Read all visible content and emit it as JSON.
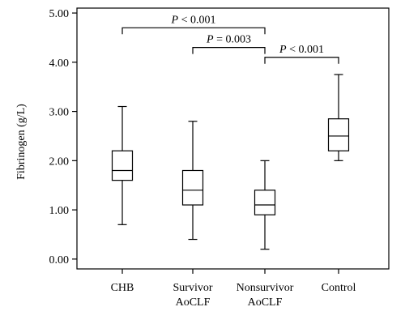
{
  "chart_data": {
    "type": "box",
    "ylabel": "Fibrinogen (g/L)",
    "xlabel": "",
    "ylim": [
      -0.2,
      5.1
    ],
    "yticks": [
      "0.00",
      "1.00",
      "2.00",
      "3.00",
      "4.00",
      "5.00"
    ],
    "ytick_values": [
      0,
      1,
      2,
      3,
      4,
      5
    ],
    "grid": false,
    "legend": "none",
    "categories": [
      {
        "lines": [
          "CHB"
        ]
      },
      {
        "lines": [
          "Survivor",
          "AoCLF"
        ]
      },
      {
        "lines": [
          "Nonsurvivor",
          "AoCLF"
        ]
      },
      {
        "lines": [
          "Control"
        ]
      }
    ],
    "boxes": [
      {
        "whisker_low": 0.7,
        "q1": 1.6,
        "median": 1.8,
        "q3": 2.2,
        "whisker_high": 3.1
      },
      {
        "whisker_low": 0.4,
        "q1": 1.1,
        "median": 1.4,
        "q3": 1.8,
        "whisker_high": 2.8
      },
      {
        "whisker_low": 0.2,
        "q1": 0.9,
        "median": 1.1,
        "q3": 1.4,
        "whisker_high": 2.0
      },
      {
        "whisker_low": 2.0,
        "q1": 2.2,
        "median": 2.5,
        "q3": 2.85,
        "whisker_high": 3.75
      }
    ],
    "significance": [
      {
        "from": 0,
        "to": 2,
        "level": 4.7,
        "label_italic": "P",
        "label_rest": " < 0.001"
      },
      {
        "from": 1,
        "to": 2,
        "level": 4.3,
        "label_italic": "P",
        "label_rest": " = 0.003"
      },
      {
        "from": 2,
        "to": 3,
        "level": 4.1,
        "label_italic": "P",
        "label_rest": " < 0.001"
      }
    ],
    "colors": {
      "line": "#000000",
      "box_fill": "#ffffff",
      "background": "#ffffff"
    }
  }
}
